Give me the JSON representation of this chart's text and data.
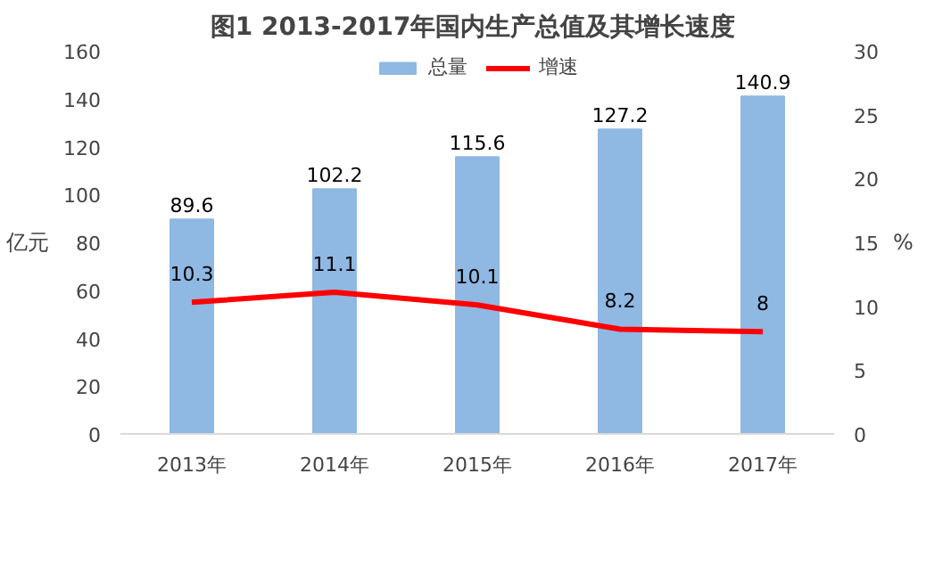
{
  "chart_data": {
    "type": "bar",
    "title": "图1  2013-2017年国内生产总值及其增长速度",
    "ylabel": "亿元",
    "y2label": "%",
    "categories": [
      "2013年",
      "2014年",
      "2015年",
      "2016年",
      "2017年"
    ],
    "series": [
      {
        "name": "总量",
        "color": "#8fb8e3",
        "values": [
          89.6,
          102.2,
          115.6,
          127.2,
          140.9
        ]
      },
      {
        "name": "增速",
        "type": "line",
        "color": "#ff0000",
        "axis": "y2",
        "values": [
          10.3,
          11.1,
          10.1,
          8.2,
          8
        ]
      }
    ],
    "ylim": [
      0,
      160
    ],
    "yticks": [
      0,
      20,
      40,
      60,
      80,
      100,
      120,
      140,
      160
    ],
    "y2lim": [
      0,
      30
    ],
    "y2ticks": [
      0,
      5,
      10,
      15,
      20,
      25,
      30
    ],
    "data_labels": true,
    "legend": "top",
    "grid": false
  }
}
